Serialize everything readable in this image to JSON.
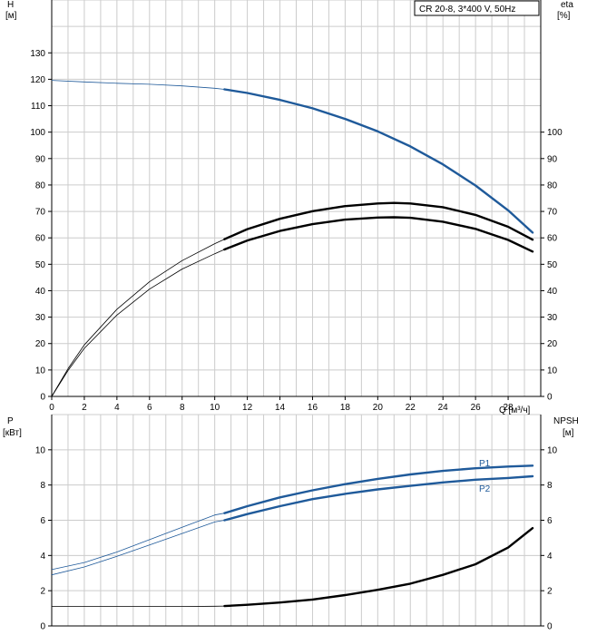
{
  "legend": {
    "label": "CR 20-8, 3*400 V, 50Hz"
  },
  "colors": {
    "blue": "#1f5a9a",
    "black": "#000000",
    "grid": "#cccccc",
    "axis": "#000000"
  },
  "chart_data": [
    {
      "type": "line",
      "name_key": "top",
      "xaxis": {
        "label": "Q [м³/ч]",
        "range": [
          0,
          30
        ],
        "ticks": [
          0,
          2,
          4,
          6,
          8,
          10,
          12,
          14,
          16,
          18,
          20,
          22,
          24,
          26,
          28
        ]
      },
      "yaxis_left": {
        "label_line1": "H",
        "label_line2": "[м]",
        "range": [
          0,
          150
        ],
        "ticks": [
          0,
          10,
          20,
          30,
          40,
          50,
          60,
          70,
          80,
          90,
          100,
          110,
          120,
          130
        ]
      },
      "yaxis_right": {
        "label_line1": "eta",
        "label_line2": "[%]",
        "range": [
          0,
          150
        ],
        "ticks": [
          0,
          10,
          20,
          30,
          40,
          50,
          60,
          70,
          80,
          90,
          100
        ]
      },
      "grid": true,
      "series": [
        {
          "key": "H",
          "color": "blue",
          "emphasis_from": 10.6,
          "x": [
            0,
            2,
            4,
            6,
            8,
            10,
            10.6,
            12,
            14,
            16,
            18,
            20,
            22,
            24,
            26,
            28,
            29.5
          ],
          "y": [
            119.6,
            119.0,
            118.5,
            118.1,
            117.5,
            116.6,
            116.2,
            114.8,
            112.2,
            109.0,
            105.0,
            100.3,
            94.6,
            87.8,
            79.8,
            70.4,
            62.0
          ]
        },
        {
          "key": "eta_upper",
          "color": "black",
          "emphasis_from": 10.6,
          "x": [
            0,
            1,
            2,
            4,
            6,
            8,
            10,
            10.6,
            12,
            14,
            16,
            18,
            20,
            21,
            22,
            24,
            26,
            28,
            29.5
          ],
          "y": [
            0,
            10.5,
            19.5,
            33.0,
            43.4,
            51.4,
            57.8,
            59.5,
            63.3,
            67.2,
            70.1,
            72.0,
            73.0,
            73.2,
            73.0,
            71.6,
            68.7,
            64.2,
            59.3
          ]
        },
        {
          "key": "eta_lower",
          "color": "black",
          "emphasis_from": 10.6,
          "x": [
            0,
            1,
            2,
            4,
            6,
            8,
            10,
            10.6,
            12,
            14,
            16,
            18,
            20,
            21,
            22,
            24,
            26,
            28,
            29.5
          ],
          "y": [
            0,
            9.8,
            18.2,
            30.8,
            40.6,
            48.2,
            54.0,
            55.6,
            59.0,
            62.6,
            65.2,
            66.9,
            67.7,
            67.8,
            67.6,
            66.1,
            63.4,
            59.2,
            54.8
          ]
        }
      ]
    },
    {
      "type": "line",
      "name_key": "bottom",
      "xaxis": {
        "range": [
          0,
          30
        ]
      },
      "yaxis_left": {
        "label_line1": "P",
        "label_line2": "[кВт]",
        "range": [
          0,
          12
        ],
        "ticks": [
          0,
          2,
          4,
          6,
          8,
          10
        ]
      },
      "yaxis_right": {
        "label_line1": "NPSH",
        "label_line2": "[м]",
        "range": [
          0,
          12
        ],
        "ticks": [
          0,
          2,
          4,
          6,
          8,
          10
        ]
      },
      "grid": true,
      "series": [
        {
          "key": "P1",
          "name": "P1",
          "color": "blue",
          "emphasis_from": 10.6,
          "x": [
            0,
            2,
            4,
            6,
            8,
            10,
            10.6,
            12,
            14,
            16,
            18,
            20,
            22,
            24,
            26,
            28,
            29.5
          ],
          "y": [
            3.2,
            3.6,
            4.2,
            4.9,
            5.6,
            6.3,
            6.4,
            6.8,
            7.3,
            7.7,
            8.05,
            8.35,
            8.6,
            8.8,
            8.95,
            9.05,
            9.1
          ]
        },
        {
          "key": "P2",
          "name": "P2",
          "color": "blue",
          "emphasis_from": 10.6,
          "x": [
            0,
            2,
            4,
            6,
            8,
            10,
            10.6,
            12,
            14,
            16,
            18,
            20,
            22,
            24,
            26,
            28,
            29.5
          ],
          "y": [
            2.9,
            3.35,
            3.95,
            4.6,
            5.25,
            5.9,
            6.0,
            6.35,
            6.8,
            7.2,
            7.5,
            7.75,
            7.95,
            8.15,
            8.3,
            8.4,
            8.5
          ]
        },
        {
          "key": "NPSH",
          "color": "black",
          "emphasis_from": 10.6,
          "x": [
            0,
            2,
            4,
            6,
            8,
            10,
            10.6,
            12,
            14,
            16,
            18,
            20,
            22,
            24,
            26,
            28,
            29.5
          ],
          "y": [
            1.1,
            1.1,
            1.1,
            1.1,
            1.1,
            1.12,
            1.13,
            1.2,
            1.33,
            1.5,
            1.75,
            2.05,
            2.4,
            2.9,
            3.5,
            4.45,
            5.55
          ]
        }
      ]
    }
  ]
}
